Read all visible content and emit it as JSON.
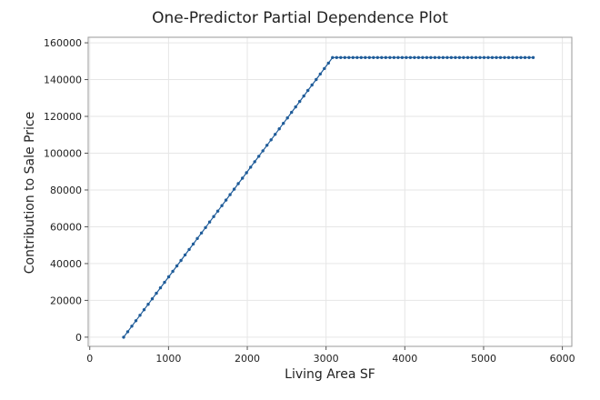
{
  "chart_data": {
    "type": "line",
    "title": "One-Predictor Partial Dependence Plot",
    "xlabel": "Living Area SF",
    "ylabel": "Contribution to Sale Price",
    "xlim": [
      -20,
      6120
    ],
    "ylim": [
      -5000,
      163000
    ],
    "xticks": [
      0,
      1000,
      2000,
      3000,
      4000,
      5000,
      6000
    ],
    "xtick_labels": [
      "0",
      "1000",
      "2000",
      "3000",
      "4000",
      "5000",
      "6000"
    ],
    "yticks": [
      0,
      20000,
      40000,
      60000,
      80000,
      100000,
      120000,
      140000,
      160000
    ],
    "ytick_labels": [
      "0",
      "20000",
      "40000",
      "60000",
      "80000",
      "100000",
      "120000",
      "140000",
      "160000"
    ],
    "grid": true,
    "legend": "none",
    "series": [
      {
        "name": "Contribution to Sale Price",
        "color": "#1f5c99",
        "marker": "dot",
        "x_start": 430,
        "x_step": 52,
        "n_points": 101,
        "breakpoint_x": 3080,
        "rise_per_unit_x": 57.3,
        "plateau_y": 152000,
        "note": "y rises linearly from 0 at x=430 to 152000 at x~3080, then stays flat at 152000 through x~5630"
      }
    ]
  }
}
